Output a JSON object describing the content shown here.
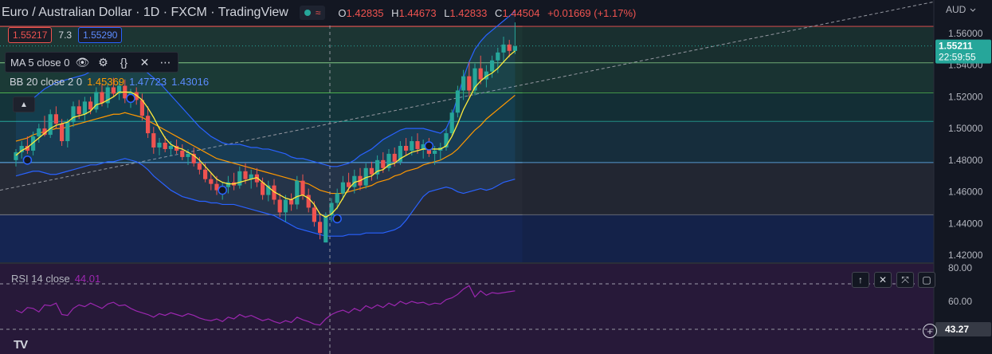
{
  "header": {
    "symbol_title": "Euro / Australian Dollar · 1D · FXCM · TradingView",
    "open_label": "O",
    "open": "1.42835",
    "high_label": "H",
    "high": "1.44673",
    "low_label": "L",
    "low": "1.42833",
    "close_label": "C",
    "close": "1.44504",
    "change": "+0.01669 (+1.17%)"
  },
  "trade": {
    "sell": "1.55217",
    "spread": "7.3",
    "buy": "1.55290"
  },
  "indicators": {
    "ma_label": "MA 5 close 0",
    "bb_label": "BB 20 close 2 0",
    "bb_basis": "1.45369",
    "bb_upper": "1.47723",
    "bb_lower": "1.43016"
  },
  "rsi": {
    "label": "RSI 14 close",
    "value": "44.01",
    "marker": "43.27"
  },
  "price_axis": {
    "currency": "AUD",
    "current_price": "1.55211",
    "countdown": "22:59:55",
    "ticks": [
      "1.56000",
      "1.54000",
      "1.52000",
      "1.50000",
      "1.48000",
      "1.46000",
      "1.44000",
      "1.42000"
    ],
    "rsi_ticks": [
      "80.00",
      "60.00"
    ]
  },
  "logo": "TV",
  "colors": {
    "up": "#26a69a",
    "down": "#ef5350",
    "ma": "#ffeb3b",
    "bb_upper": "#2962ff",
    "bb_lower": "#2962ff",
    "bb_basis": "#ff9800",
    "rsi": "#9c27b0"
  },
  "chart_data": {
    "type": "candlestick",
    "ylim": [
      1.41,
      1.575
    ],
    "fib_levels": [
      1.5645,
      1.5415,
      1.5225,
      1.5045,
      1.4785,
      1.4455
    ],
    "trendline": {
      "from": [
        0,
        1.461
      ],
      "to": [
        160,
        1.58
      ]
    },
    "candles": [
      [
        1.48,
        1.487,
        1.476,
        1.485
      ],
      [
        1.485,
        1.492,
        1.481,
        1.489
      ],
      [
        1.489,
        1.495,
        1.484,
        1.486
      ],
      [
        1.486,
        1.498,
        1.483,
        1.495
      ],
      [
        1.495,
        1.503,
        1.491,
        1.5
      ],
      [
        1.5,
        1.508,
        1.495,
        1.496
      ],
      [
        1.496,
        1.512,
        1.494,
        1.509
      ],
      [
        1.509,
        1.514,
        1.5,
        1.503
      ],
      [
        1.503,
        1.506,
        1.489,
        1.492
      ],
      [
        1.492,
        1.506,
        1.488,
        1.504
      ],
      [
        1.504,
        1.517,
        1.501,
        1.514
      ],
      [
        1.514,
        1.518,
        1.506,
        1.509
      ],
      [
        1.509,
        1.52,
        1.505,
        1.517
      ],
      [
        1.517,
        1.52,
        1.509,
        1.512
      ],
      [
        1.512,
        1.526,
        1.51,
        1.523
      ],
      [
        1.523,
        1.528,
        1.514,
        1.516
      ],
      [
        1.516,
        1.529,
        1.513,
        1.526
      ],
      [
        1.526,
        1.532,
        1.52,
        1.522
      ],
      [
        1.522,
        1.53,
        1.518,
        1.527
      ],
      [
        1.527,
        1.531,
        1.516,
        1.519
      ],
      [
        1.519,
        1.525,
        1.513,
        1.523
      ],
      [
        1.523,
        1.526,
        1.515,
        1.518
      ],
      [
        1.518,
        1.522,
        1.505,
        1.508
      ],
      [
        1.508,
        1.514,
        1.494,
        1.497
      ],
      [
        1.497,
        1.501,
        1.484,
        1.488
      ],
      [
        1.488,
        1.494,
        1.483,
        1.491
      ],
      [
        1.491,
        1.495,
        1.485,
        1.487
      ],
      [
        1.487,
        1.492,
        1.483,
        1.489
      ],
      [
        1.489,
        1.493,
        1.484,
        1.486
      ],
      [
        1.486,
        1.49,
        1.48,
        1.482
      ],
      [
        1.482,
        1.487,
        1.477,
        1.484
      ],
      [
        1.484,
        1.488,
        1.476,
        1.478
      ],
      [
        1.478,
        1.482,
        1.471,
        1.474
      ],
      [
        1.474,
        1.478,
        1.466,
        1.468
      ],
      [
        1.468,
        1.472,
        1.461,
        1.465
      ],
      [
        1.465,
        1.47,
        1.458,
        1.461
      ],
      [
        1.461,
        1.466,
        1.455,
        1.463
      ],
      [
        1.463,
        1.47,
        1.459,
        1.466
      ],
      [
        1.466,
        1.472,
        1.461,
        1.464
      ],
      [
        1.464,
        1.476,
        1.462,
        1.473
      ],
      [
        1.473,
        1.478,
        1.465,
        1.468
      ],
      [
        1.468,
        1.474,
        1.462,
        1.471
      ],
      [
        1.471,
        1.475,
        1.463,
        1.466
      ],
      [
        1.466,
        1.469,
        1.455,
        1.458
      ],
      [
        1.458,
        1.467,
        1.454,
        1.464
      ],
      [
        1.464,
        1.468,
        1.452,
        1.455
      ],
      [
        1.455,
        1.459,
        1.444,
        1.447
      ],
      [
        1.447,
        1.458,
        1.441,
        1.455
      ],
      [
        1.455,
        1.459,
        1.448,
        1.452
      ],
      [
        1.452,
        1.47,
        1.449,
        1.467
      ],
      [
        1.467,
        1.471,
        1.455,
        1.458
      ],
      [
        1.458,
        1.462,
        1.447,
        1.45
      ],
      [
        1.45,
        1.454,
        1.438,
        1.441
      ],
      [
        1.441,
        1.446,
        1.43,
        1.434
      ],
      [
        1.428,
        1.447,
        1.428,
        1.445
      ],
      [
        1.445,
        1.456,
        1.441,
        1.453
      ],
      [
        1.453,
        1.462,
        1.449,
        1.459
      ],
      [
        1.459,
        1.47,
        1.455,
        1.466
      ],
      [
        1.466,
        1.472,
        1.46,
        1.463
      ],
      [
        1.463,
        1.474,
        1.459,
        1.47
      ],
      [
        1.47,
        1.475,
        1.461,
        1.464
      ],
      [
        1.464,
        1.478,
        1.462,
        1.475
      ],
      [
        1.475,
        1.479,
        1.467,
        1.471
      ],
      [
        1.471,
        1.483,
        1.468,
        1.48
      ],
      [
        1.48,
        1.485,
        1.472,
        1.475
      ],
      [
        1.475,
        1.487,
        1.473,
        1.484
      ],
      [
        1.484,
        1.488,
        1.476,
        1.479
      ],
      [
        1.479,
        1.492,
        1.477,
        1.489
      ],
      [
        1.489,
        1.494,
        1.483,
        1.486
      ],
      [
        1.486,
        1.495,
        1.483,
        1.492
      ],
      [
        1.492,
        1.497,
        1.484,
        1.487
      ],
      [
        1.487,
        1.493,
        1.481,
        1.49
      ],
      [
        1.49,
        1.494,
        1.482,
        1.484
      ],
      [
        1.484,
        1.489,
        1.477,
        1.486
      ],
      [
        1.486,
        1.491,
        1.48,
        1.488
      ],
      [
        1.488,
        1.5,
        1.486,
        1.497
      ],
      [
        1.497,
        1.512,
        1.495,
        1.51
      ],
      [
        1.51,
        1.527,
        1.507,
        1.524
      ],
      [
        1.524,
        1.537,
        1.518,
        1.533
      ],
      [
        1.533,
        1.542,
        1.52,
        1.524
      ],
      [
        1.524,
        1.541,
        1.521,
        1.538
      ],
      [
        1.538,
        1.546,
        1.528,
        1.531
      ],
      [
        1.531,
        1.54,
        1.526,
        1.536
      ],
      [
        1.536,
        1.546,
        1.532,
        1.543
      ],
      [
        1.543,
        1.551,
        1.535,
        1.548
      ],
      [
        1.548,
        1.558,
        1.542,
        1.553
      ],
      [
        1.553,
        1.556,
        1.545,
        1.549
      ],
      [
        1.549,
        1.567,
        1.547,
        1.552
      ]
    ],
    "ma": [
      1.483,
      1.486,
      1.488,
      1.491,
      1.494,
      1.497,
      1.5,
      1.502,
      1.503,
      1.504,
      1.507,
      1.508,
      1.509,
      1.511,
      1.515,
      1.516,
      1.518,
      1.52,
      1.523,
      1.523,
      1.523,
      1.521,
      1.518,
      1.513,
      1.507,
      1.5,
      1.494,
      1.49,
      1.488,
      1.487,
      1.485,
      1.483,
      1.48,
      1.476,
      1.472,
      1.468,
      1.466,
      1.465,
      1.465,
      1.466,
      1.467,
      1.468,
      1.469,
      1.466,
      1.463,
      1.46,
      1.458,
      1.456,
      1.455,
      1.457,
      1.458,
      1.456,
      1.452,
      1.446,
      1.444,
      1.446,
      1.45,
      1.456,
      1.462,
      1.466,
      1.467,
      1.469,
      1.47,
      1.473,
      1.474,
      1.477,
      1.478,
      1.481,
      1.483,
      1.485,
      1.486,
      1.487,
      1.487,
      1.487,
      1.487,
      1.489,
      1.495,
      1.503,
      1.512,
      1.519,
      1.526,
      1.53,
      1.533,
      1.535,
      1.538,
      1.542,
      1.546,
      1.549
    ],
    "bb_upper": [
      1.515,
      1.514,
      1.516,
      1.519,
      1.522,
      1.525,
      1.527,
      1.529,
      1.53,
      1.531,
      1.532,
      1.533,
      1.534,
      1.536,
      1.538,
      1.54,
      1.541,
      1.542,
      1.543,
      1.544,
      1.543,
      1.541,
      1.538,
      1.535,
      1.532,
      1.529,
      1.525,
      1.521,
      1.517,
      1.513,
      1.509,
      1.505,
      1.501,
      1.498,
      1.495,
      1.493,
      1.491,
      1.49,
      1.49,
      1.49,
      1.489,
      1.488,
      1.488,
      1.487,
      1.487,
      1.486,
      1.485,
      1.484,
      1.482,
      1.481,
      1.481,
      1.48,
      1.479,
      1.478,
      1.477,
      1.476,
      1.476,
      1.477,
      1.478,
      1.48,
      1.483,
      1.485,
      1.487,
      1.49,
      1.493,
      1.495,
      1.497,
      1.499,
      1.5,
      1.5,
      1.5,
      1.5,
      1.499,
      1.498,
      1.497,
      1.5,
      1.508,
      1.52,
      1.532,
      1.542,
      1.55,
      1.555,
      1.559,
      1.562,
      1.565,
      1.568,
      1.571,
      1.574
    ],
    "bb_basis": [
      1.492,
      1.493,
      1.494,
      1.496,
      1.497,
      1.498,
      1.499,
      1.5,
      1.5,
      1.501,
      1.502,
      1.503,
      1.504,
      1.505,
      1.506,
      1.507,
      1.508,
      1.509,
      1.509,
      1.51,
      1.509,
      1.508,
      1.507,
      1.505,
      1.503,
      1.501,
      1.499,
      1.497,
      1.495,
      1.493,
      1.491,
      1.489,
      1.487,
      1.485,
      1.483,
      1.481,
      1.48,
      1.479,
      1.478,
      1.477,
      1.476,
      1.475,
      1.474,
      1.473,
      1.472,
      1.471,
      1.47,
      1.469,
      1.468,
      1.467,
      1.466,
      1.465,
      1.463,
      1.461,
      1.46,
      1.459,
      1.459,
      1.459,
      1.46,
      1.461,
      1.462,
      1.463,
      1.464,
      1.466,
      1.467,
      1.468,
      1.47,
      1.471,
      1.473,
      1.474,
      1.475,
      1.477,
      1.478,
      1.479,
      1.48,
      1.482,
      1.484,
      1.487,
      1.491,
      1.495,
      1.499,
      1.502,
      1.506,
      1.509,
      1.512,
      1.515,
      1.518,
      1.521
    ],
    "bb_lower": [
      1.47,
      1.471,
      1.472,
      1.473,
      1.473,
      1.472,
      1.471,
      1.471,
      1.472,
      1.473,
      1.474,
      1.475,
      1.476,
      1.477,
      1.477,
      1.478,
      1.479,
      1.479,
      1.48,
      1.481,
      1.48,
      1.479,
      1.477,
      1.474,
      1.47,
      1.467,
      1.464,
      1.461,
      1.459,
      1.457,
      1.456,
      1.455,
      1.454,
      1.454,
      1.453,
      1.453,
      1.452,
      1.452,
      1.452,
      1.451,
      1.45,
      1.449,
      1.448,
      1.447,
      1.446,
      1.445,
      1.443,
      1.441,
      1.439,
      1.437,
      1.436,
      1.435,
      1.434,
      1.433,
      1.432,
      1.432,
      1.432,
      1.432,
      1.433,
      1.433,
      1.433,
      1.434,
      1.434,
      1.434,
      1.434,
      1.435,
      1.436,
      1.438,
      1.442,
      1.447,
      1.452,
      1.457,
      1.46,
      1.461,
      1.462,
      1.463,
      1.462,
      1.46,
      1.459,
      1.46,
      1.461,
      1.462,
      1.461,
      1.462,
      1.464,
      1.466,
      1.467,
      1.468
    ],
    "rsi": [
      50,
      47,
      53,
      52,
      48,
      56,
      55,
      58,
      45,
      44,
      52,
      56,
      54,
      58,
      55,
      52,
      57,
      59,
      55,
      56,
      52,
      49,
      47,
      45,
      42,
      46,
      44,
      47,
      45,
      43,
      46,
      44,
      41,
      39,
      38,
      40,
      37,
      42,
      40,
      45,
      42,
      44,
      41,
      38,
      40,
      37,
      35,
      38,
      36,
      42,
      39,
      37,
      34,
      33,
      40,
      45,
      48,
      50,
      47,
      52,
      49,
      55,
      52,
      56,
      53,
      58,
      55,
      60,
      57,
      60,
      58,
      59,
      56,
      58,
      57,
      62,
      64,
      68,
      74,
      78,
      65,
      72,
      67,
      70,
      69,
      70,
      71,
      72
    ],
    "rsi_range": [
      30,
      82
    ]
  }
}
